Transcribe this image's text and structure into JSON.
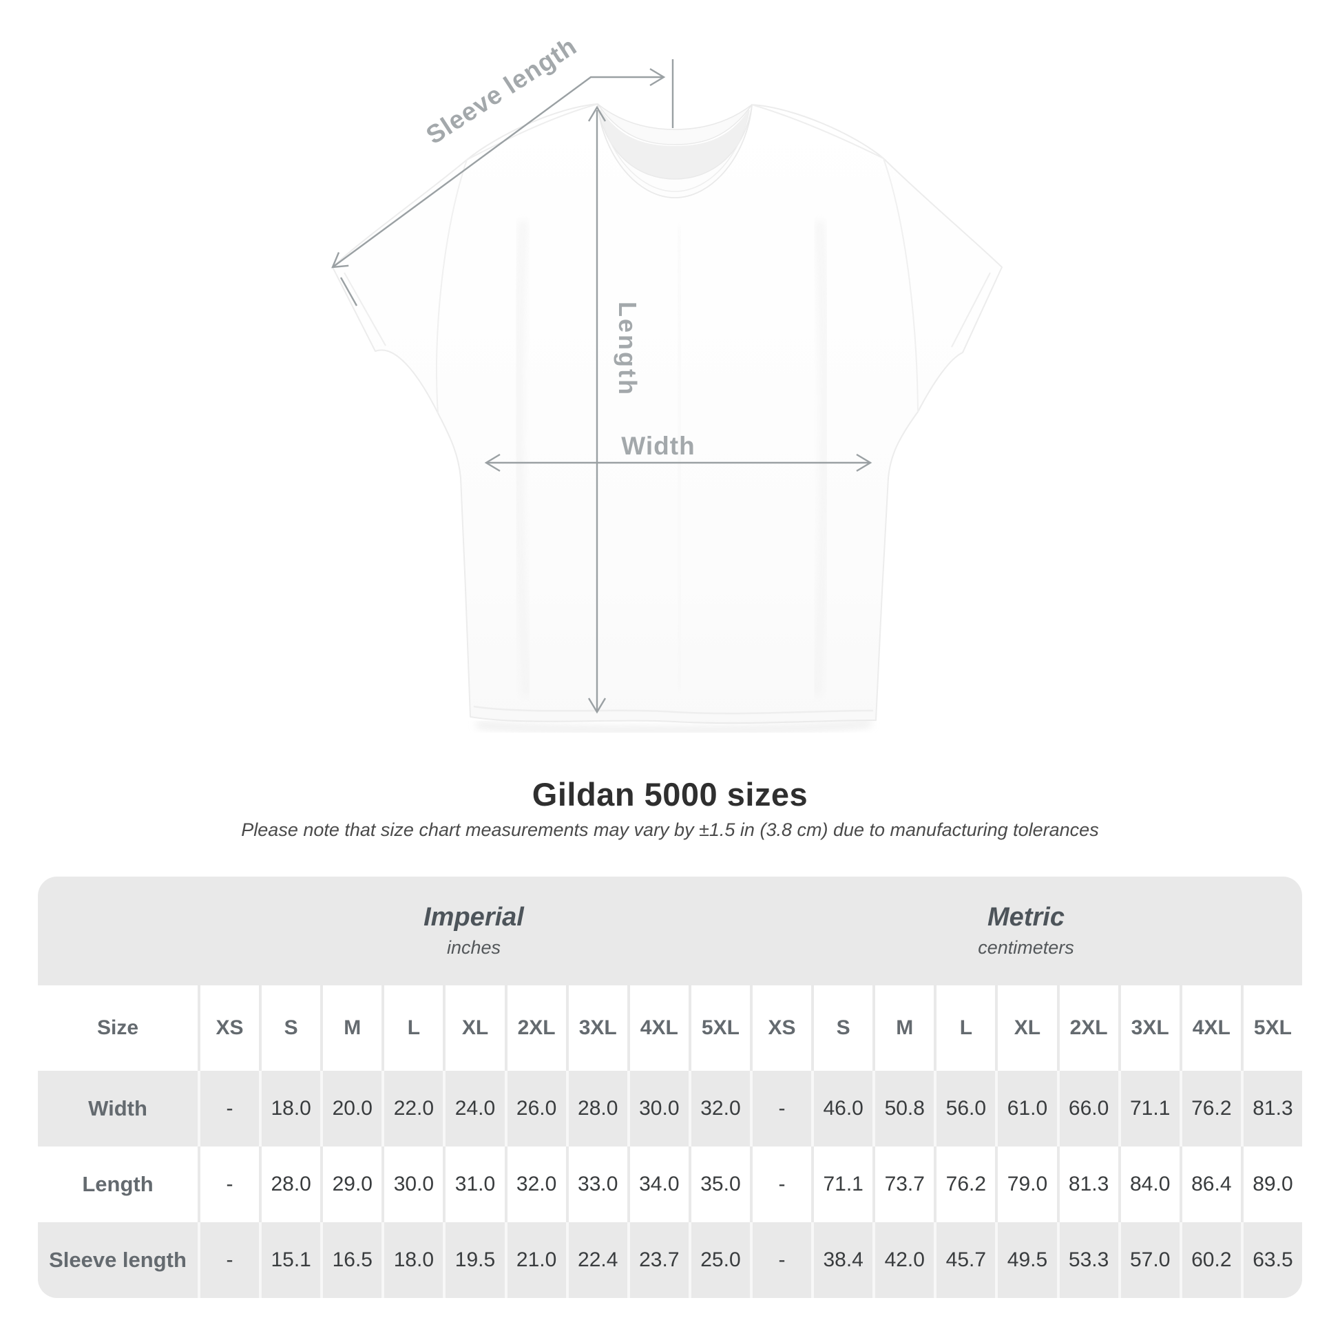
{
  "diagram": {
    "sleeve_length_label": "Sleeve length",
    "length_label": "Length",
    "width_label": "Width"
  },
  "heading": {
    "title": "Gildan 5000 sizes",
    "note": "Please note that size chart measurements may vary by ±1.5 in (3.8 cm) due to manufacturing tolerances"
  },
  "size_table": {
    "corner_label": "Size",
    "unit_groups": [
      {
        "label": "Imperial",
        "unit": "inches"
      },
      {
        "label": "Metric",
        "unit": "centimeters"
      }
    ],
    "sizes": [
      "XS",
      "S",
      "M",
      "L",
      "XL",
      "2XL",
      "3XL",
      "4XL",
      "5XL"
    ],
    "rows": [
      {
        "label": "Width",
        "imperial": [
          "-",
          "18.0",
          "20.0",
          "22.0",
          "24.0",
          "26.0",
          "28.0",
          "30.0",
          "32.0"
        ],
        "metric": [
          "-",
          "46.0",
          "50.8",
          "56.0",
          "61.0",
          "66.0",
          "71.1",
          "76.2",
          "81.3"
        ]
      },
      {
        "label": "Length",
        "imperial": [
          "-",
          "28.0",
          "29.0",
          "30.0",
          "31.0",
          "32.0",
          "33.0",
          "34.0",
          "35.0"
        ],
        "metric": [
          "-",
          "71.1",
          "73.7",
          "76.2",
          "79.0",
          "81.3",
          "84.0",
          "86.4",
          "89.0"
        ]
      },
      {
        "label": "Sleeve length",
        "imperial": [
          "-",
          "15.1",
          "16.5",
          "18.0",
          "19.5",
          "21.0",
          "22.4",
          "23.7",
          "25.0"
        ],
        "metric": [
          "-",
          "38.4",
          "42.0",
          "45.7",
          "49.5",
          "53.3",
          "57.0",
          "60.2",
          "63.5"
        ]
      }
    ]
  },
  "colors": {
    "annotation_line": "#9aa0a3",
    "annotation_text": "#a3a8ab",
    "card_bg": "#e9e9e9",
    "white_row_separator": "#e9e9e9",
    "gray_row_separator": "#f7f7f7",
    "header_text": "#646a6f",
    "value_text": "#393c3e",
    "title_text": "#2f2f2f"
  }
}
